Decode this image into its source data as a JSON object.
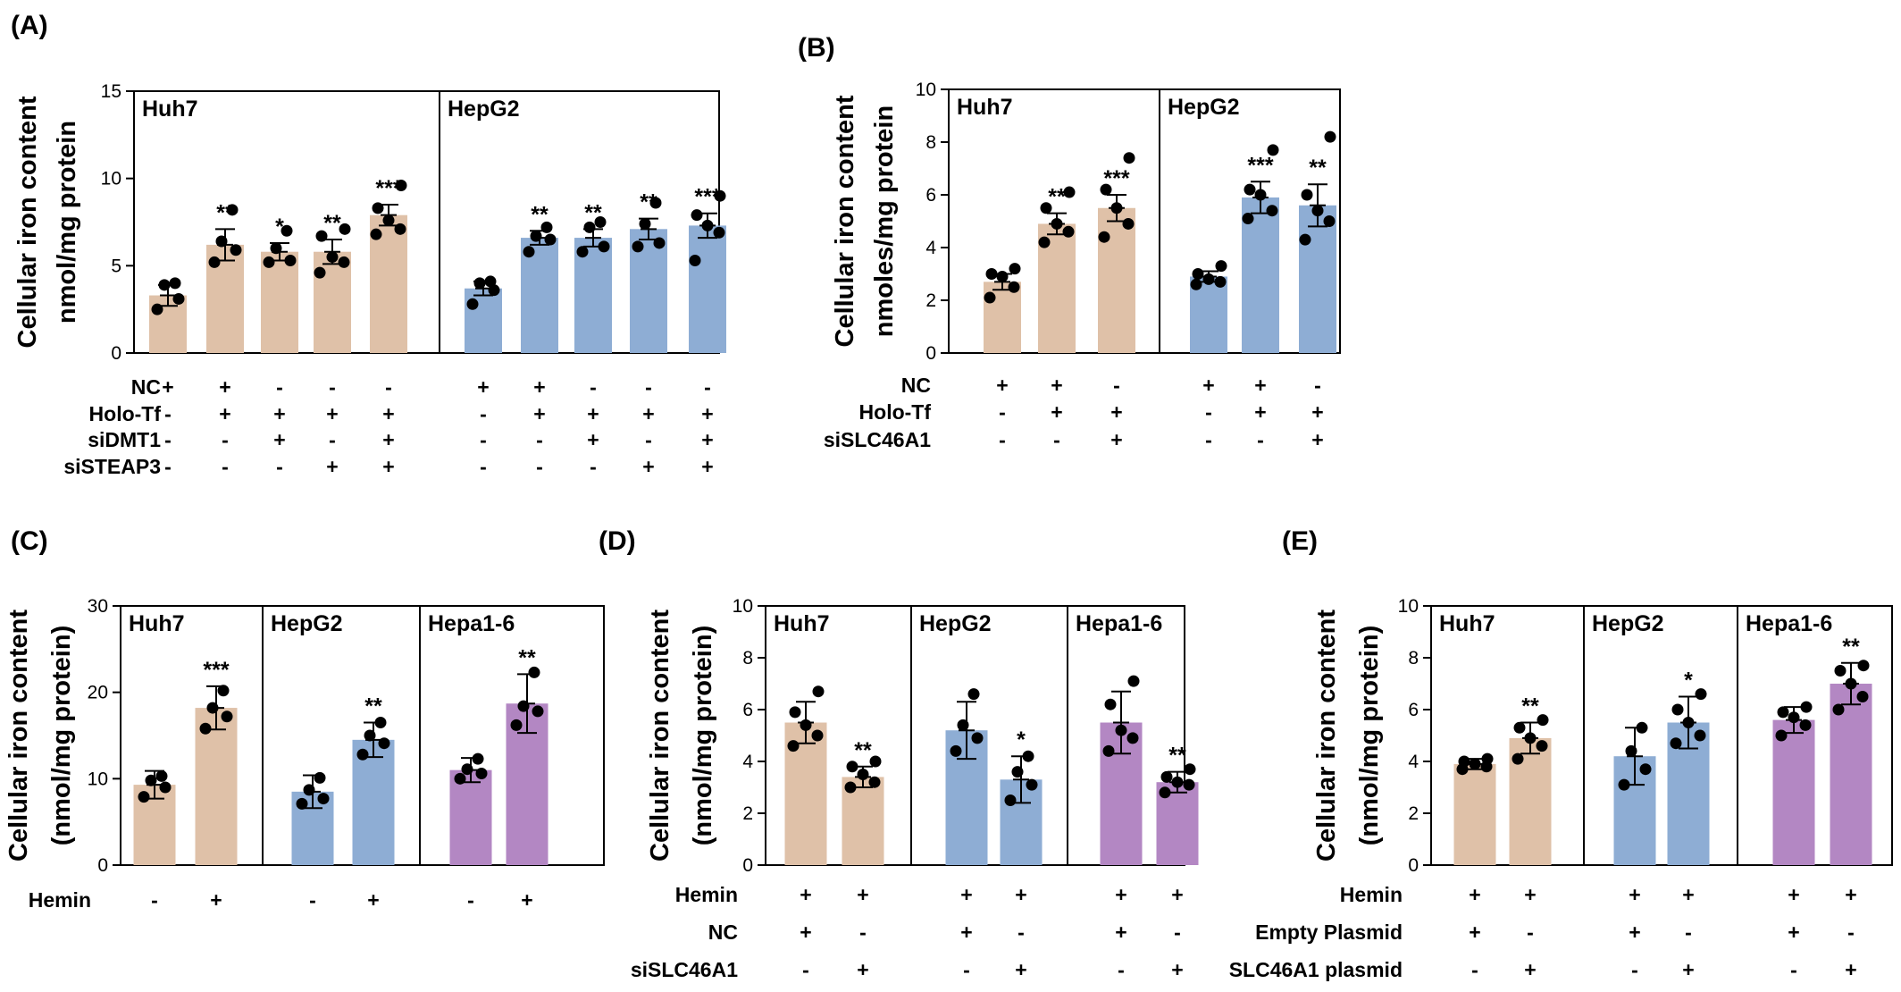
{
  "colors": {
    "Huh7": "#dfc1a8",
    "HepG2": "#8eadd4",
    "Hepa1-6": "#b387c3",
    "points": "#000000"
  },
  "chart_data": [
    {
      "panel": "(A)",
      "type": "bar",
      "ylabel": [
        "Cellular iron content",
        "nmol/mg protein"
      ],
      "ylim": [
        0,
        15
      ],
      "yticks": [
        0,
        5,
        10,
        15
      ],
      "groups": [
        {
          "name": "Huh7",
          "color": "Huh7",
          "bars": [
            {
              "mean": 3.3,
              "err": 0.6,
              "sig": "",
              "points": [
                2.5,
                3.1,
                3.9,
                4.0
              ]
            },
            {
              "mean": 6.2,
              "err": 0.9,
              "sig": "**",
              "points": [
                5.2,
                5.9,
                6.4,
                8.2
              ]
            },
            {
              "mean": 5.8,
              "err": 0.5,
              "sig": "*",
              "points": [
                5.2,
                5.3,
                6.0,
                7.0
              ]
            },
            {
              "mean": 5.8,
              "err": 0.7,
              "sig": "**",
              "points": [
                4.6,
                5.2,
                5.5,
                6.7,
                7.1
              ]
            },
            {
              "mean": 7.9,
              "err": 0.6,
              "sig": "***",
              "points": [
                6.8,
                7.1,
                7.6,
                8.3,
                9.6
              ]
            }
          ]
        },
        {
          "name": "HepG2",
          "color": "HepG2",
          "bars": [
            {
              "mean": 3.7,
              "err": 0.4,
              "sig": "",
              "points": [
                2.8,
                3.6,
                4.0,
                4.1
              ]
            },
            {
              "mean": 6.6,
              "err": 0.4,
              "sig": "**",
              "points": [
                5.8,
                6.5,
                6.7,
                7.2
              ]
            },
            {
              "mean": 6.6,
              "err": 0.5,
              "sig": "**",
              "points": [
                5.8,
                6.1,
                7.2,
                7.5
              ]
            },
            {
              "mean": 7.1,
              "err": 0.6,
              "sig": "**",
              "points": [
                6.1,
                6.3,
                7.4,
                8.6
              ]
            },
            {
              "mean": 7.3,
              "err": 0.7,
              "sig": "***",
              "points": [
                5.3,
                6.9,
                7.3,
                7.9,
                9.0
              ]
            }
          ]
        }
      ],
      "treatments": [
        {
          "label": "NC",
          "signs": [
            "+",
            "+",
            "-",
            "-",
            "-",
            "+",
            "+",
            "-",
            "-",
            "-"
          ]
        },
        {
          "label": "Holo-Tf",
          "signs": [
            "-",
            "+",
            "+",
            "+",
            "+",
            "-",
            "+",
            "+",
            "+",
            "+"
          ]
        },
        {
          "label": "siDMT1",
          "signs": [
            "-",
            "-",
            "+",
            "-",
            "+",
            "-",
            "-",
            "+",
            "-",
            "+"
          ]
        },
        {
          "label": "siSTEAP3",
          "signs": [
            "-",
            "-",
            "-",
            "+",
            "+",
            "-",
            "-",
            "-",
            "+",
            "+"
          ]
        }
      ]
    },
    {
      "panel": "(B)",
      "type": "bar",
      "ylabel": [
        "Cellular iron content",
        "nmoles/mg protein"
      ],
      "ylim": [
        0,
        10
      ],
      "yticks": [
        0,
        2,
        4,
        6,
        8,
        10
      ],
      "groups": [
        {
          "name": "Huh7",
          "color": "Huh7",
          "bars": [
            {
              "mean": 2.7,
              "err": 0.3,
              "sig": "",
              "points": [
                2.1,
                2.5,
                2.9,
                3.0,
                3.2
              ]
            },
            {
              "mean": 4.9,
              "err": 0.4,
              "sig": "**",
              "points": [
                4.2,
                4.6,
                4.9,
                5.5,
                6.1
              ]
            },
            {
              "mean": 5.5,
              "err": 0.5,
              "sig": "***",
              "points": [
                4.4,
                4.9,
                5.5,
                6.2,
                7.4
              ]
            }
          ]
        },
        {
          "name": "HepG2",
          "color": "HepG2",
          "bars": [
            {
              "mean": 2.9,
              "err": 0.2,
              "sig": "",
              "points": [
                2.6,
                2.7,
                2.8,
                3.0,
                3.3
              ]
            },
            {
              "mean": 5.9,
              "err": 0.6,
              "sig": "***",
              "points": [
                5.1,
                5.4,
                6.0,
                6.2,
                7.7
              ]
            },
            {
              "mean": 5.6,
              "err": 0.8,
              "sig": "**",
              "points": [
                4.3,
                5.0,
                5.4,
                6.0,
                8.2
              ]
            }
          ]
        }
      ],
      "treatments": [
        {
          "label": "NC",
          "signs": [
            "+",
            "+",
            "-",
            "+",
            "+",
            "-"
          ]
        },
        {
          "label": "Holo-Tf",
          "signs": [
            "-",
            "+",
            "+",
            "-",
            "+",
            "+"
          ]
        },
        {
          "label": "siSLC46A1",
          "signs": [
            "-",
            "-",
            "+",
            "-",
            "-",
            "+"
          ]
        }
      ]
    },
    {
      "panel": "(C)",
      "type": "bar",
      "ylabel": [
        "Cellular iron content",
        "(nmol/mg protein)"
      ],
      "ylim": [
        0,
        30
      ],
      "yticks": [
        0,
        10,
        20,
        30
      ],
      "groups": [
        {
          "name": "Huh7",
          "color": "Huh7",
          "bars": [
            {
              "mean": 9.3,
              "err": 1.6,
              "sig": "",
              "points": [
                7.9,
                9.0,
                9.8,
                10.3
              ]
            },
            {
              "mean": 18.2,
              "err": 2.5,
              "sig": "***",
              "points": [
                15.8,
                17.2,
                18.2,
                20.2
              ]
            }
          ]
        },
        {
          "name": "HepG2",
          "color": "HepG2",
          "bars": [
            {
              "mean": 8.5,
              "err": 1.9,
              "sig": "",
              "points": [
                7.1,
                7.7,
                8.7,
                10.1
              ]
            },
            {
              "mean": 14.5,
              "err": 2.0,
              "sig": "**",
              "points": [
                12.8,
                14.1,
                15.0,
                16.5
              ]
            }
          ]
        },
        {
          "name": "Hepa1-6",
          "color": "Hepa1-6",
          "bars": [
            {
              "mean": 11.0,
              "err": 1.4,
              "sig": "",
              "points": [
                10.0,
                10.6,
                11.1,
                12.3
              ]
            },
            {
              "mean": 18.7,
              "err": 3.4,
              "sig": "**",
              "points": [
                16.2,
                17.8,
                18.4,
                22.3
              ]
            }
          ]
        }
      ],
      "treatments": [
        {
          "label": "Hemin",
          "signs": [
            "-",
            "+",
            "-",
            "+",
            "-",
            "+"
          ]
        }
      ]
    },
    {
      "panel": "(D)",
      "type": "bar",
      "ylabel": [
        "Cellular iron content",
        "(nmol/mg protein)"
      ],
      "ylim": [
        0,
        10
      ],
      "yticks": [
        0,
        2,
        4,
        6,
        8,
        10
      ],
      "groups": [
        {
          "name": "Huh7",
          "color": "Huh7",
          "bars": [
            {
              "mean": 5.5,
              "err": 0.8,
              "sig": "",
              "points": [
                4.6,
                5.0,
                5.4,
                5.9,
                6.7
              ]
            },
            {
              "mean": 3.4,
              "err": 0.4,
              "sig": "**",
              "points": [
                3.0,
                3.2,
                3.5,
                3.8,
                4.0
              ]
            }
          ]
        },
        {
          "name": "HepG2",
          "color": "HepG2",
          "bars": [
            {
              "mean": 5.2,
              "err": 1.1,
              "sig": "",
              "points": [
                4.4,
                4.9,
                5.4,
                6.6
              ]
            },
            {
              "mean": 3.3,
              "err": 0.9,
              "sig": "*",
              "points": [
                2.5,
                3.1,
                3.6,
                4.2
              ]
            }
          ]
        },
        {
          "name": "Hepa1-6",
          "color": "Hepa1-6",
          "bars": [
            {
              "mean": 5.5,
              "err": 1.2,
              "sig": "",
              "points": [
                4.4,
                4.9,
                5.2,
                6.2,
                7.1
              ]
            },
            {
              "mean": 3.2,
              "err": 0.4,
              "sig": "**",
              "points": [
                2.8,
                3.1,
                3.2,
                3.4,
                3.7
              ]
            }
          ]
        }
      ],
      "treatments": [
        {
          "label": "Hemin",
          "signs": [
            "+",
            "+",
            "+",
            "+",
            "+",
            "+"
          ]
        },
        {
          "label": "NC",
          "signs": [
            "+",
            "-",
            "+",
            "-",
            "+",
            "-"
          ]
        },
        {
          "label": "siSLC46A1",
          "signs": [
            "-",
            "+",
            "-",
            "+",
            "-",
            "+"
          ]
        }
      ]
    },
    {
      "panel": "(E)",
      "type": "bar",
      "ylabel": [
        "Cellular iron content",
        "(nmol/mg protein)"
      ],
      "ylim": [
        0,
        10
      ],
      "yticks": [
        0,
        2,
        4,
        6,
        8,
        10
      ],
      "groups": [
        {
          "name": "Huh7",
          "color": "Huh7",
          "bars": [
            {
              "mean": 3.9,
              "err": 0.2,
              "sig": "",
              "points": [
                3.7,
                3.8,
                3.9,
                4.0,
                4.1
              ]
            },
            {
              "mean": 4.9,
              "err": 0.6,
              "sig": "**",
              "points": [
                4.1,
                4.6,
                4.9,
                5.3,
                5.6
              ]
            }
          ]
        },
        {
          "name": "HepG2",
          "color": "HepG2",
          "bars": [
            {
              "mean": 4.2,
              "err": 1.1,
              "sig": "",
              "points": [
                3.1,
                3.7,
                4.4,
                5.3
              ]
            },
            {
              "mean": 5.5,
              "err": 1.0,
              "sig": "*",
              "points": [
                4.7,
                5.0,
                5.5,
                6.0,
                6.6
              ]
            }
          ]
        },
        {
          "name": "Hepa1-6",
          "color": "Hepa1-6",
          "bars": [
            {
              "mean": 5.6,
              "err": 0.5,
              "sig": "",
              "points": [
                5.0,
                5.4,
                5.7,
                5.9,
                6.1
              ]
            },
            {
              "mean": 7.0,
              "err": 0.8,
              "sig": "**",
              "points": [
                6.0,
                6.5,
                7.0,
                7.5,
                7.7
              ]
            }
          ]
        }
      ],
      "treatments": [
        {
          "label": "Hemin",
          "signs": [
            "+",
            "+",
            "+",
            "+",
            "+",
            "+"
          ]
        },
        {
          "label": "Empty Plasmid",
          "signs": [
            "+",
            "-",
            "+",
            "-",
            "+",
            "-"
          ]
        },
        {
          "label": "SLC46A1 plasmid",
          "signs": [
            "-",
            "+",
            "-",
            "+",
            "-",
            "+"
          ]
        }
      ]
    }
  ]
}
